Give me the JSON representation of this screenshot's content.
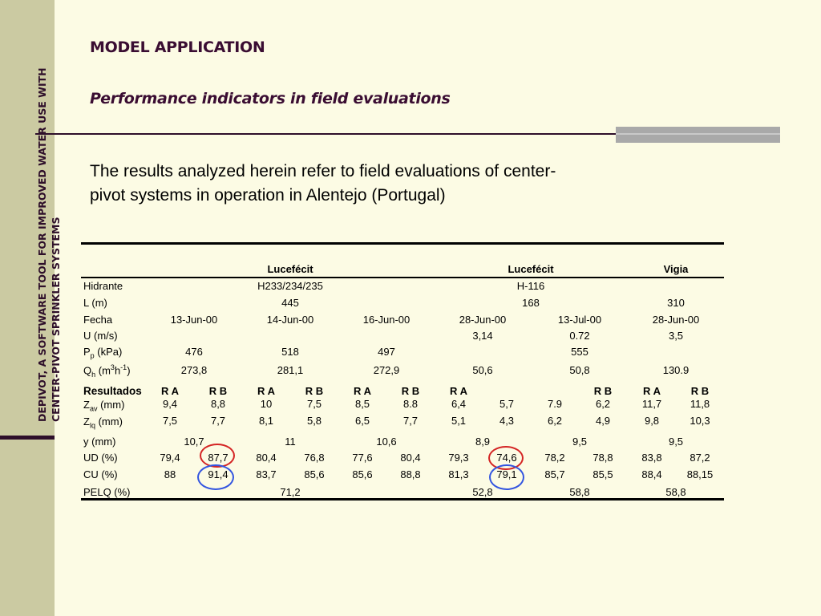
{
  "sidebar": {
    "title_line1": "DEPIVOT, A SOFTWARE TOOL FOR IMPROVED WATER USE WITH",
    "title_line2": "CENTER-PIVOT SPRINKLER SYSTEMS"
  },
  "heading": "MODEL APPLICATION",
  "subheading": "Performance indicators in field evaluations",
  "intro_line1": "The results analyzed herein refer to field evaluations of center-",
  "intro_line2": "pivot systems in operation in Alentejo (Portugal)",
  "table": {
    "groups": [
      "Lucefécit",
      "Lucefécit",
      "Vigia"
    ],
    "labels": {
      "hidrante": "Hidrante",
      "l": "L (m)",
      "fecha": "Fecha",
      "u": "U (m/s)",
      "pp_main": "P",
      "pp_sub": "p",
      "pp_rest": " (kPa)",
      "qh_main": "Q",
      "qh_sub": "h",
      "qh_mid": " (m",
      "qh_sup1": "3",
      "qh_mid2": "h",
      "qh_sup2": "-1",
      "qh_end": ")",
      "resultados": "Resultados",
      "zav_main": "Z",
      "zav_sub": "av",
      "zav_rest": " (mm)",
      "zlq_main": "Z",
      "zlq_sub": "lq",
      "zlq_rest": " (mm)",
      "y": "y (mm)",
      "ud": "UD (%)",
      "cu": "CU (%)",
      "pelq": "PELQ (%)"
    },
    "hidrante": [
      "H233/234/235",
      "H-116"
    ],
    "l_values": [
      "445",
      "168",
      "310"
    ],
    "fecha": [
      "13-Jun-00",
      "14-Jun-00",
      "16-Jun-00",
      "28-Jun-00",
      "13-Jul-00",
      "28-Jun-00"
    ],
    "u": [
      "3,14",
      "0.72",
      "3,5"
    ],
    "pp": [
      "476",
      "518",
      "497",
      "555"
    ],
    "qh": [
      "273,8",
      "281,1",
      "272,9",
      "50,6",
      "50,8",
      "130.9"
    ],
    "ra_rb": [
      "R A",
      "R B",
      "R A",
      "R B",
      "R A",
      "R B",
      "R A",
      "R B",
      "R A",
      "R B"
    ],
    "zav": [
      "9,4",
      "8,8",
      "10",
      "7,5",
      "8,5",
      "8.8",
      "6,4",
      "5,7",
      "7.9",
      "6,2",
      "11,7",
      "11,8"
    ],
    "zlq": [
      "7,5",
      "7,7",
      "8,1",
      "5,8",
      "6,5",
      "7,7",
      "5,1",
      "4,3",
      "6,2",
      "4,9",
      "9,8",
      "10,3"
    ],
    "y": [
      "10,7",
      "11",
      "10,6",
      "8,9",
      "9,5",
      "9,5"
    ],
    "ud": [
      "79,4",
      "87,7",
      "80,4",
      "76,8",
      "77,6",
      "80,4",
      "79,3",
      "74,6",
      "78,2",
      "78,8",
      "83,8",
      "87,2"
    ],
    "cu": [
      "88",
      "91,4",
      "83,7",
      "85,6",
      "85,6",
      "88,8",
      "81,3",
      "79,1",
      "85,7",
      "85,5",
      "88,4",
      "88,15"
    ],
    "pelq": [
      "71,2",
      "52,8",
      "58,8",
      "58,8"
    ]
  },
  "colors": {
    "background": "#fcfbe4",
    "sidebar": "#cbcaa2",
    "title": "#3a0d32",
    "circle_red": "#d42424",
    "circle_blue": "#3355e0"
  }
}
